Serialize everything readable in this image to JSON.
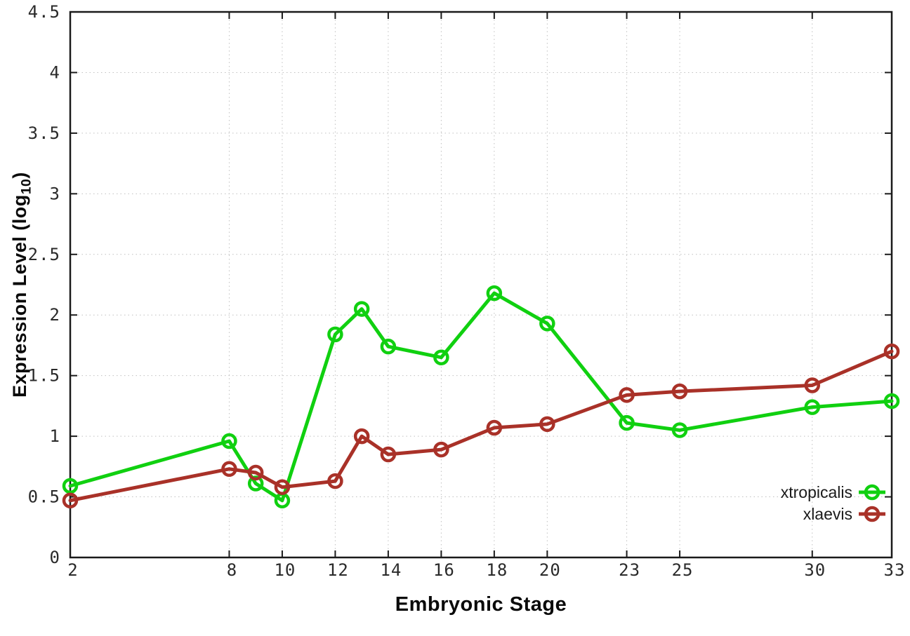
{
  "page": {
    "background_color": "#ffffff",
    "plot_border_color": "#1a1a1a",
    "grid_color": "#c0c0c0",
    "tick_label_color": "#2a2a2a"
  },
  "chart_data": {
    "type": "line",
    "title": "",
    "xlabel": "Embryonic Stage",
    "ylabel": "Expression Level (log10)",
    "ylabel_parts": {
      "pre": "Expression Level (log",
      "sub": "10",
      "post": ")"
    },
    "x": [
      2,
      8,
      9,
      10,
      12,
      13,
      14,
      16,
      18,
      20,
      23,
      25,
      30,
      33
    ],
    "xticks": [
      "2",
      "8",
      "10",
      "12",
      "14",
      "16",
      "18",
      "20",
      "23",
      "25",
      "30",
      "33"
    ],
    "yticks": [
      "0",
      "0.5",
      "1",
      "1.5",
      "2",
      "2.5",
      "3",
      "3.5",
      "4",
      "4.5"
    ],
    "xlim": [
      2,
      33
    ],
    "ylim": [
      0,
      4.5
    ],
    "grid": true,
    "marker": "open-circle",
    "legend_position": "bottom-right-inside",
    "series": [
      {
        "name": "xtropicalis",
        "color": "#10d010",
        "values": [
          0.59,
          0.96,
          0.61,
          0.47,
          1.84,
          2.05,
          1.74,
          1.65,
          2.18,
          1.93,
          1.11,
          1.05,
          1.24,
          1.29
        ]
      },
      {
        "name": "xlaevis",
        "color": "#a93128",
        "values": [
          0.47,
          0.73,
          0.7,
          0.58,
          0.63,
          1.0,
          0.85,
          0.89,
          1.07,
          1.1,
          1.34,
          1.37,
          1.42,
          1.7
        ]
      }
    ]
  }
}
